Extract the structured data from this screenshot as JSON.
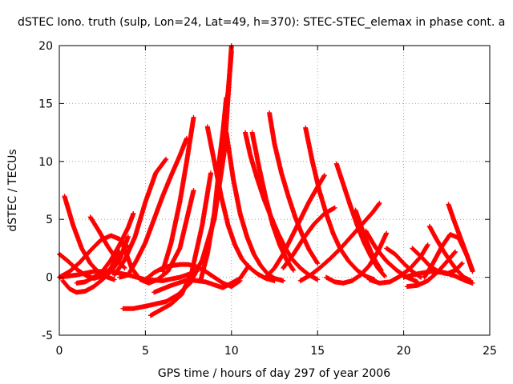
{
  "chart_data": {
    "type": "scatter",
    "title": "dSTEC Iono. truth (sulp, Lon=24, Lat=49, h=370): STEC-STEC_elemax in phase cont. a",
    "xlabel": "GPS time / hours of day 297 of year 2006",
    "ylabel": "dSTEC  / TECUs",
    "xlim": [
      0,
      25
    ],
    "ylim": [
      -5,
      20
    ],
    "x_ticks": [
      "0",
      "5",
      "10",
      "15",
      "20",
      "25"
    ],
    "y_ticks": [
      "-5",
      "0",
      "5",
      "10",
      "15",
      "20"
    ],
    "grid": true,
    "marker": "plus",
    "color": "#ff0000",
    "arcs": [
      {
        "x": [
          0.3,
          0.8,
          1.3,
          1.8,
          2.3,
          2.8,
          3.2
        ],
        "y": [
          7.0,
          4.5,
          2.5,
          1.2,
          0.4,
          0.0,
          -0.2
        ]
      },
      {
        "x": [
          0.0,
          0.5,
          1.0,
          1.5,
          2.0,
          2.5,
          3.0,
          3.5
        ],
        "y": [
          2.0,
          1.4,
          0.7,
          0.2,
          -0.1,
          0.1,
          0.8,
          2.2
        ]
      },
      {
        "x": [
          0.2,
          0.6,
          1.0,
          1.5,
          2.0,
          2.5,
          3.0,
          3.5,
          4.0
        ],
        "y": [
          -0.3,
          -1.0,
          -1.3,
          -1.2,
          -0.8,
          -0.2,
          0.5,
          1.5,
          3.5
        ]
      },
      {
        "x": [
          1.8,
          2.3,
          2.8,
          3.3,
          3.8
        ],
        "y": [
          5.2,
          4.0,
          2.7,
          1.6,
          0.8
        ]
      },
      {
        "x": [
          0.0,
          0.6,
          1.2,
          1.8,
          2.4,
          3.0,
          3.5,
          4.0
        ],
        "y": [
          0.0,
          0.5,
          1.3,
          2.3,
          3.2,
          3.6,
          3.3,
          2.6
        ]
      },
      {
        "x": [
          3.7,
          4.3,
          5.0,
          5.6,
          6.2,
          6.9,
          7.6,
          8.3,
          9.0,
          9.6,
          10.0
        ],
        "y": [
          -2.7,
          -2.7,
          -2.5,
          -2.3,
          -2.1,
          -1.5,
          -0.5,
          1.5,
          5.0,
          11.0,
          20.0
        ]
      },
      {
        "x": [
          3.7,
          4.2,
          4.7,
          5.2,
          5.7,
          6.3,
          7.0,
          7.8
        ],
        "y": [
          2.8,
          0.8,
          -0.2,
          -0.5,
          -0.2,
          0.5,
          2.5,
          7.5
        ]
      },
      {
        "x": [
          3.2,
          3.8,
          4.4,
          5.0,
          5.6,
          6.2
        ],
        "y": [
          0.2,
          1.5,
          3.5,
          6.5,
          9.0,
          10.2
        ]
      },
      {
        "x": [
          3.5,
          4.0,
          4.5,
          5.0,
          5.5,
          6.0,
          6.5,
          7.0,
          7.4
        ],
        "y": [
          0.0,
          0.2,
          1.5,
          3.0,
          5.0,
          7.0,
          8.8,
          10.5,
          12.0
        ]
      },
      {
        "x": [
          5.3,
          5.9,
          6.5,
          7.1,
          7.7,
          8.3,
          8.8
        ],
        "y": [
          -3.3,
          -2.8,
          -2.3,
          -1.5,
          0.5,
          4.5,
          9.0
        ]
      },
      {
        "x": [
          6.0,
          6.5,
          7.0,
          7.4,
          7.8
        ],
        "y": [
          0.5,
          3.0,
          6.5,
          10.0,
          13.8
        ]
      },
      {
        "x": [
          8.2,
          8.6,
          9.0,
          9.4,
          9.7
        ],
        "y": [
          -0.3,
          2.0,
          5.5,
          11.0,
          15.5
        ]
      },
      {
        "x": [
          8.6,
          9.0,
          9.4,
          9.8,
          10.2,
          10.6,
          11.0,
          11.5,
          12.0,
          12.5
        ],
        "y": [
          13.0,
          10.0,
          7.0,
          4.5,
          2.8,
          1.6,
          0.9,
          0.3,
          -0.1,
          -0.3
        ]
      },
      {
        "x": [
          9.7,
          10.1,
          10.5,
          10.9,
          11.3,
          11.7,
          12.1,
          12.5,
          13.0
        ],
        "y": [
          12.5,
          8.5,
          5.5,
          3.5,
          2.0,
          1.0,
          0.3,
          -0.1,
          -0.3
        ]
      },
      {
        "x": [
          10.8,
          11.1,
          11.5,
          11.9,
          12.3,
          12.7,
          13.1,
          13.5,
          14.0,
          14.5,
          15.0
        ],
        "y": [
          12.5,
          10.5,
          8.5,
          6.7,
          5.2,
          3.8,
          2.6,
          1.6,
          0.8,
          0.2,
          -0.2
        ]
      },
      {
        "x": [
          11.2,
          11.6,
          12.0,
          12.4,
          12.8,
          13.2,
          13.6
        ],
        "y": [
          12.5,
          9.5,
          6.8,
          4.5,
          2.8,
          1.5,
          0.6
        ]
      },
      {
        "x": [
          12.2,
          12.5,
          12.9,
          13.3,
          13.7,
          14.1,
          14.5,
          15.0
        ],
        "y": [
          14.2,
          11.5,
          9.0,
          7.0,
          5.2,
          3.7,
          2.4,
          1.2
        ]
      },
      {
        "x": [
          12.0,
          12.5,
          13.0,
          13.5,
          14.0,
          14.5,
          15.0,
          15.4
        ],
        "y": [
          0.0,
          0.8,
          2.0,
          3.5,
          5.0,
          6.5,
          7.8,
          8.8
        ]
      },
      {
        "x": [
          14.3,
          14.7,
          15.1,
          15.5,
          15.9,
          16.3,
          16.8,
          17.3,
          17.8,
          18.3
        ],
        "y": [
          12.9,
          10.0,
          7.5,
          5.5,
          3.8,
          2.5,
          1.4,
          0.6,
          0.1,
          -0.2
        ]
      },
      {
        "x": [
          16.1,
          16.5,
          16.9,
          17.3,
          17.7,
          18.1,
          18.5,
          18.9
        ],
        "y": [
          9.8,
          8.0,
          6.2,
          4.5,
          3.0,
          1.8,
          0.8,
          0.1
        ]
      },
      {
        "x": [
          17.2,
          17.5,
          17.8,
          18.1,
          18.4,
          18.7
        ],
        "y": [
          5.8,
          4.5,
          3.3,
          2.2,
          1.3,
          0.6
        ]
      },
      {
        "x": [
          14.0,
          14.6,
          15.2,
          15.8,
          16.4,
          17.0,
          17.6,
          18.2,
          18.6
        ],
        "y": [
          -0.3,
          0.2,
          0.9,
          1.7,
          2.6,
          3.6,
          4.6,
          5.6,
          6.4
        ]
      },
      {
        "x": [
          13.0,
          13.6,
          14.2,
          14.8,
          15.4,
          16.0
        ],
        "y": [
          0.8,
          2.0,
          3.4,
          4.6,
          5.5,
          6.0
        ]
      },
      {
        "x": [
          17.8,
          18.4,
          19.0,
          19.6,
          20.2,
          20.8
        ],
        "y": [
          4.0,
          2.5,
          1.4,
          0.6,
          0.0,
          -0.4
        ]
      },
      {
        "x": [
          18.0,
          18.6,
          19.2,
          19.8,
          20.4,
          21.0,
          21.4
        ],
        "y": [
          -0.2,
          -0.5,
          -0.4,
          0.1,
          0.8,
          1.8,
          2.8
        ]
      },
      {
        "x": [
          19.0,
          19.5,
          20.0,
          20.5,
          21.0
        ],
        "y": [
          2.5,
          2.0,
          1.2,
          0.5,
          0.0
        ]
      },
      {
        "x": [
          20.5,
          21.0,
          21.5,
          22.0,
          22.5,
          23.0,
          23.4
        ],
        "y": [
          2.5,
          1.8,
          1.0,
          0.5,
          0.3,
          0.6,
          1.2
        ]
      },
      {
        "x": [
          20.2,
          20.8,
          21.4,
          22.0,
          22.6,
          23.0
        ],
        "y": [
          -0.8,
          -0.7,
          -0.3,
          0.5,
          1.5,
          2.2
        ]
      },
      {
        "x": [
          21.2,
          21.7,
          22.2,
          22.7,
          23.2,
          23.7,
          24.0
        ],
        "y": [
          0.0,
          1.2,
          2.6,
          3.7,
          3.4,
          1.8,
          0.5
        ]
      },
      {
        "x": [
          21.5,
          21.9,
          22.3,
          22.7,
          23.1,
          23.5,
          23.9
        ],
        "y": [
          4.4,
          3.3,
          2.3,
          1.4,
          0.6,
          0.0,
          -0.3
        ]
      },
      {
        "x": [
          22.6,
          22.9,
          23.2,
          23.5,
          23.8,
          24.0
        ],
        "y": [
          6.3,
          5.0,
          3.8,
          2.6,
          1.4,
          0.6
        ]
      },
      {
        "x": [
          20.0,
          20.8,
          21.6,
          22.4,
          23.0,
          23.6,
          24.0
        ],
        "y": [
          0.0,
          0.3,
          0.5,
          0.4,
          0.1,
          -0.3,
          -0.5
        ]
      },
      {
        "x": [
          0.0,
          1.0,
          2.0,
          3.0,
          4.0,
          5.0,
          6.0,
          7.0,
          8.0
        ],
        "y": [
          0.0,
          0.2,
          0.5,
          0.5,
          0.2,
          -0.2,
          -0.3,
          0.0,
          0.5
        ]
      },
      {
        "x": [
          5.0,
          5.5,
          6.0,
          6.5,
          7.0,
          7.5,
          8.0,
          8.5,
          9.0,
          9.5,
          10.0,
          10.5
        ],
        "y": [
          -0.2,
          0.4,
          0.8,
          1.0,
          1.1,
          1.1,
          0.9,
          0.5,
          0.0,
          -0.5,
          -0.8,
          -0.3
        ]
      },
      {
        "x": [
          5.5,
          6.5,
          7.5,
          8.5,
          9.5,
          10.5,
          11.0
        ],
        "y": [
          -1.3,
          -0.7,
          -0.2,
          -0.4,
          -0.9,
          -0.1,
          1.0
        ]
      },
      {
        "x": [
          1.0,
          1.5,
          2.0,
          2.5,
          3.0,
          3.5,
          4.0,
          4.3
        ],
        "y": [
          -0.5,
          -0.4,
          0.0,
          0.5,
          1.5,
          2.8,
          4.3,
          5.5
        ]
      },
      {
        "x": [
          9.2,
          9.5,
          9.8,
          10.0
        ],
        "y": [
          9.0,
          12.5,
          16.0,
          19.5
        ]
      },
      {
        "x": [
          15.5,
          16.0,
          16.5,
          17.0,
          17.5,
          18.0,
          18.5,
          19.0
        ],
        "y": [
          0.0,
          -0.4,
          -0.5,
          -0.3,
          0.2,
          1.0,
          2.2,
          3.8
        ]
      }
    ]
  }
}
